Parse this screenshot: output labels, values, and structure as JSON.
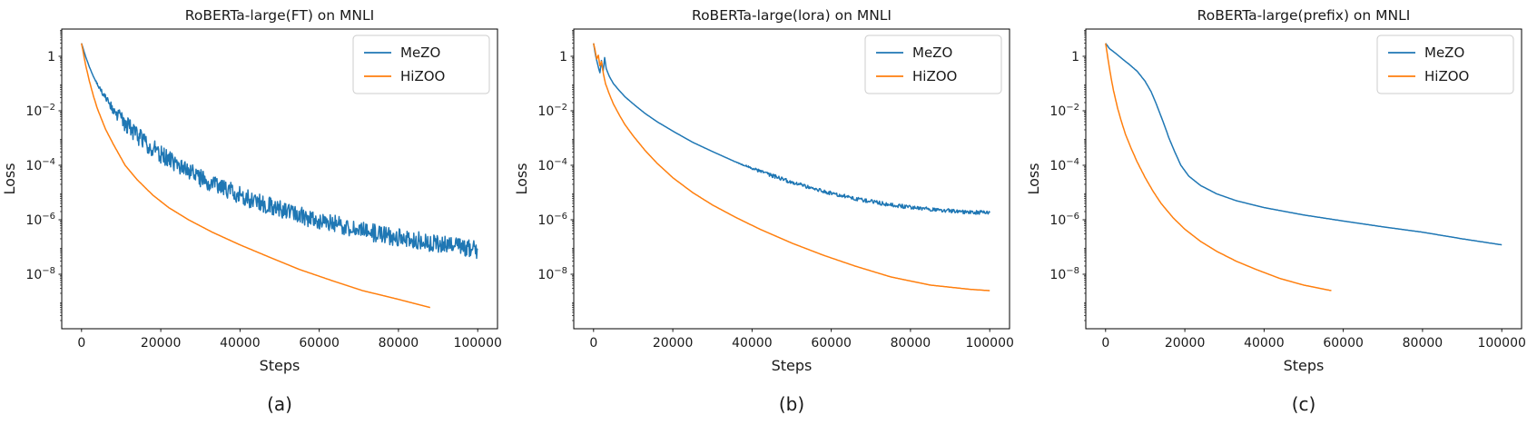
{
  "chart_data": [
    {
      "type": "line",
      "title": "RoBERTa-large(FT) on MNLI",
      "xlabel": "Steps",
      "ylabel": "Loss",
      "panel_label": "(a)",
      "xlim": [
        -5000,
        105000
      ],
      "ylim": [
        1e-10,
        10
      ],
      "yscale": "log",
      "grid": false,
      "xticks": [
        0,
        20000,
        40000,
        60000,
        80000,
        100000
      ],
      "ytick_exponents": [
        0,
        -2,
        -4,
        -6,
        -8
      ],
      "legend": {
        "position": "upper right",
        "entries": [
          "MeZO",
          "HiZOO"
        ]
      },
      "series": [
        {
          "name": "MeZO",
          "color": "#1f77b4",
          "noise_decades": 0.33,
          "noise_start": 3000,
          "x": [
            0,
            1000,
            2000,
            3000,
            4500,
            6000,
            8000,
            10000,
            13000,
            16000,
            20000,
            25000,
            30000,
            36000,
            42000,
            50000,
            58000,
            66000,
            75000,
            85000,
            95000,
            100000
          ],
          "y": [
            3,
            1.0,
            0.4,
            0.18,
            0.07,
            0.03,
            0.012,
            0.005,
            0.0018,
            0.0007,
            0.00025,
            9e-05,
            3.5e-05,
            1.4e-05,
            6e-06,
            2.5e-06,
            1.1e-06,
            6e-07,
            3e-07,
            1.7e-07,
            1e-07,
            8e-08
          ]
        },
        {
          "name": "HiZOO",
          "color": "#ff7f0e",
          "noise_decades": 0,
          "noise_start": 0,
          "x": [
            0,
            1000,
            2000,
            3000,
            4000,
            6000,
            8000,
            11000,
            14000,
            18000,
            22000,
            27000,
            33000,
            40000,
            47000,
            55000,
            63000,
            71000,
            80000,
            88000
          ],
          "y": [
            3,
            0.5,
            0.12,
            0.035,
            0.012,
            0.0022,
            0.0006,
            0.0001,
            3e-05,
            8e-06,
            2.8e-06,
            1e-06,
            3.5e-07,
            1.2e-07,
            4.5e-08,
            1.5e-08,
            6e-09,
            2.5e-09,
            1.2e-09,
            6e-10
          ]
        }
      ]
    },
    {
      "type": "line",
      "title": "RoBERTa-large(lora) on MNLI",
      "xlabel": "Steps",
      "ylabel": "Loss",
      "panel_label": "(b)",
      "xlim": [
        -5000,
        105000
      ],
      "ylim": [
        1e-10,
        10
      ],
      "yscale": "log",
      "grid": false,
      "xticks": [
        0,
        20000,
        40000,
        60000,
        80000,
        100000
      ],
      "ytick_exponents": [
        0,
        -2,
        -4,
        -6,
        -8
      ],
      "legend": {
        "position": "upper right",
        "entries": [
          "MeZO",
          "HiZOO"
        ]
      },
      "series": [
        {
          "name": "MeZO",
          "color": "#1f77b4",
          "noise_decades": 0.07,
          "noise_start": 35000,
          "x": [
            0,
            400,
            800,
            1200,
            1600,
            2000,
            2400,
            2800,
            3200,
            4000,
            5000,
            6500,
            8000,
            10000,
            13000,
            16000,
            20000,
            25000,
            30000,
            36000,
            42000,
            50000,
            58000,
            66000,
            75000,
            85000,
            95000,
            100000
          ],
          "y": [
            3,
            1.3,
            0.7,
            0.4,
            0.25,
            0.7,
            0.28,
            0.9,
            0.35,
            0.18,
            0.1,
            0.055,
            0.032,
            0.018,
            0.008,
            0.004,
            0.0018,
            0.0007,
            0.00032,
            0.00013,
            6e-05,
            2.4e-05,
            1.1e-05,
            6e-06,
            3.5e-06,
            2.4e-06,
            1.9e-06,
            1.8e-06
          ]
        },
        {
          "name": "HiZOO",
          "color": "#ff7f0e",
          "noise_decades": 0,
          "noise_start": 0,
          "x": [
            0,
            400,
            800,
            1200,
            1600,
            2000,
            2500,
            3000,
            4000,
            5000,
            6500,
            8000,
            10000,
            13000,
            16000,
            20000,
            25000,
            30000,
            36000,
            42000,
            50000,
            58000,
            66000,
            75000,
            85000,
            95000,
            100000
          ],
          "y": [
            3,
            1.6,
            0.8,
            1.1,
            0.45,
            0.65,
            0.22,
            0.1,
            0.04,
            0.018,
            0.007,
            0.003,
            0.0012,
            0.00035,
            0.00012,
            3.5e-05,
            1e-05,
            3.5e-06,
            1.2e-06,
            4.5e-07,
            1.4e-07,
            5e-08,
            2e-08,
            8e-09,
            4e-09,
            2.8e-09,
            2.5e-09
          ]
        }
      ]
    },
    {
      "type": "line",
      "title": "RoBERTa-large(prefix) on MNLI",
      "xlabel": "Steps",
      "ylabel": "Loss",
      "panel_label": "(c)",
      "xlim": [
        -5000,
        105000
      ],
      "ylim": [
        1e-10,
        10
      ],
      "yscale": "log",
      "grid": false,
      "xticks": [
        0,
        20000,
        40000,
        60000,
        80000,
        100000
      ],
      "ytick_exponents": [
        0,
        -2,
        -4,
        -6,
        -8
      ],
      "legend": {
        "position": "upper right",
        "entries": [
          "MeZO",
          "HiZOO"
        ]
      },
      "series": [
        {
          "name": "MeZO",
          "color": "#1f77b4",
          "noise_decades": 0,
          "noise_start": 0,
          "x": [
            0,
            1000,
            2500,
            4000,
            6000,
            8000,
            10000,
            11500,
            13000,
            14500,
            16000,
            17500,
            19000,
            21000,
            24000,
            28000,
            33000,
            40000,
            50000,
            60000,
            70000,
            80000,
            90000,
            100000
          ],
          "y": [
            3,
            1.9,
            1.3,
            0.85,
            0.5,
            0.28,
            0.12,
            0.05,
            0.015,
            0.004,
            0.001,
            0.0003,
            0.0001,
            4e-05,
            1.8e-05,
            9e-06,
            5e-06,
            2.8e-06,
            1.5e-06,
            9e-07,
            5.5e-07,
            3.5e-07,
            2e-07,
            1.2e-07
          ]
        },
        {
          "name": "HiZOO",
          "color": "#ff7f0e",
          "noise_decades": 0,
          "noise_start": 0,
          "x": [
            0,
            500,
            1000,
            1500,
            2000,
            3000,
            4000,
            5000,
            6500,
            8000,
            10000,
            12000,
            14000,
            17000,
            20000,
            24000,
            28000,
            33000,
            38000,
            44000,
            50000,
            57000
          ],
          "y": [
            3,
            1.0,
            0.35,
            0.13,
            0.055,
            0.013,
            0.004,
            0.0014,
            0.0004,
            0.00013,
            3.5e-05,
            1.1e-05,
            4e-06,
            1.2e-06,
            4.5e-07,
            1.6e-07,
            7e-08,
            3e-08,
            1.5e-08,
            7e-09,
            4e-09,
            2.5e-09
          ]
        }
      ]
    }
  ]
}
